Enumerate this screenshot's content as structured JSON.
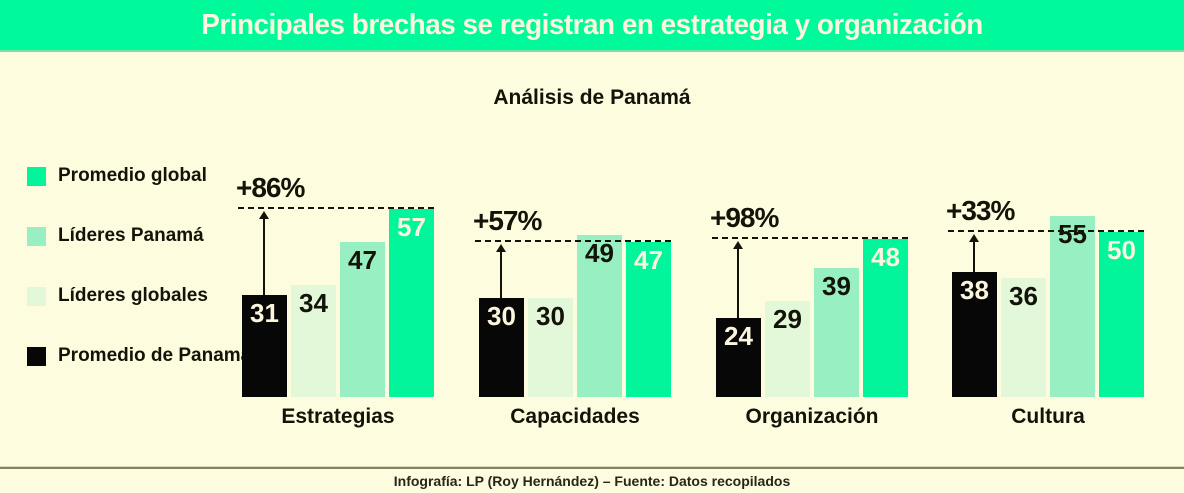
{
  "banner": {
    "title": "Principales brechas se registran en estrategia y organización",
    "bg_color": "#00F99B",
    "text_color": "#FCF7DC"
  },
  "subtitle": "Análisis de Panamá",
  "legend": {
    "items": [
      {
        "label": "Promedio global",
        "color": "#03F59B"
      },
      {
        "label": "Líderes Panamá",
        "color": "#98EFC1"
      },
      {
        "label": "Líderes globales",
        "color": "#E3F8D9"
      },
      {
        "label": "Promedio de Panamá",
        "color": "#070707"
      }
    ]
  },
  "chart_data": {
    "type": "bar",
    "title": "Análisis de Panamá",
    "categories": [
      "Estrategias",
      "Capacidades",
      "Organización",
      "Cultura"
    ],
    "series": [
      {
        "name": "Promedio de Panamá",
        "color": "#070707",
        "value_label_color": "#FBF5DC",
        "values": [
          31,
          30,
          24,
          38
        ]
      },
      {
        "name": "Líderes globales",
        "color": "#E3F8D9",
        "value_label_color": "#131309",
        "values": [
          34,
          30,
          29,
          36
        ]
      },
      {
        "name": "Líderes Panamá",
        "color": "#98EFC1",
        "value_label_color": "#131309",
        "values": [
          47,
          49,
          39,
          55
        ]
      },
      {
        "name": "Promedio global",
        "color": "#03F59B",
        "value_label_color": "#FBF5DC",
        "values": [
          57,
          47,
          48,
          50
        ]
      }
    ],
    "annotations": [
      "+86%",
      "+57%",
      "+98%",
      "+33%"
    ],
    "annotation_dash_level_series": "Promedio global",
    "annotation_arrow_from_series": "Promedio de Panamá",
    "ylim": [
      0,
      60
    ],
    "grid": false,
    "legend_position": "left",
    "xlabel": "",
    "ylabel": ""
  },
  "footer": {
    "credit": "Infografía: LP (Roy Hernández) – Fuente: Datos recopilados"
  }
}
